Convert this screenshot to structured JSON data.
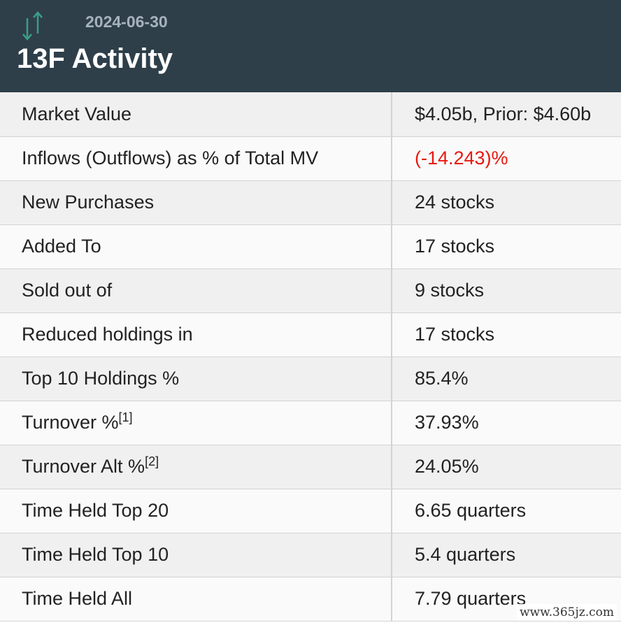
{
  "header": {
    "icon": "up-down-arrows-icon",
    "date": "2024-06-30",
    "title": "13F Activity",
    "icon_color": "#3a9e86",
    "background": "#2e3f4a"
  },
  "rows": [
    {
      "label": "Market Value",
      "value": "$4.05b, Prior: $4.60b"
    },
    {
      "label": "Inflows (Outflows) as % of Total MV",
      "value": "(-14.243)%",
      "value_color": "#e8190f"
    },
    {
      "label": "New Purchases",
      "value": "24 stocks"
    },
    {
      "label": "Added To",
      "value": "17 stocks"
    },
    {
      "label": "Sold out of",
      "value": "9 stocks"
    },
    {
      "label": "Reduced holdings in",
      "value": "17 stocks"
    },
    {
      "label": "Top 10 Holdings %",
      "value": "85.4%"
    },
    {
      "label": "Turnover %",
      "footnote": "[1]",
      "value": "37.93%"
    },
    {
      "label": "Turnover Alt %",
      "footnote": "[2]",
      "value": "24.05%"
    },
    {
      "label": "Time Held Top 20",
      "value": "6.65 quarters"
    },
    {
      "label": "Time Held Top 10",
      "value": "5.4 quarters"
    },
    {
      "label": "Time Held All",
      "value": "7.79 quarters"
    }
  ],
  "watermark": "www.365jz.com"
}
